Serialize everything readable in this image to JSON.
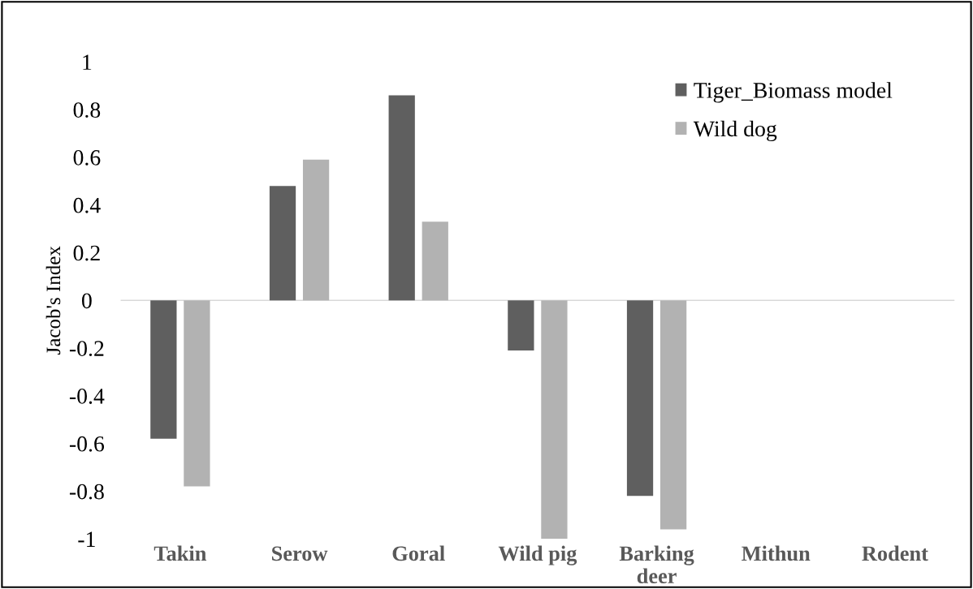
{
  "chart_data": {
    "type": "bar",
    "ylabel": "Jacob's Index",
    "categories": [
      "Takin",
      "Serow",
      "Goral",
      "Wild pig",
      "Barking deer",
      "Mithun",
      "Rodent"
    ],
    "series": [
      {
        "name": "Tiger_Biomass model",
        "color": "#5f5f5f",
        "values": [
          -0.58,
          0.48,
          0.86,
          -0.21,
          -0.82,
          null,
          null
        ]
      },
      {
        "name": "Wild dog",
        "color": "#b2b2b2",
        "values": [
          -0.78,
          0.59,
          0.33,
          -1.0,
          -0.96,
          null,
          null
        ]
      }
    ],
    "ylim": [
      -1,
      1
    ],
    "yticks": [
      -1,
      -0.8,
      -0.6,
      -0.4,
      -0.2,
      0,
      0.2,
      0.4,
      0.6,
      0.8,
      1
    ],
    "ref_lines": [
      {
        "axis": "y",
        "value": 0,
        "color": "#d9d9d9"
      }
    ],
    "grid": false,
    "legend": "top right"
  }
}
